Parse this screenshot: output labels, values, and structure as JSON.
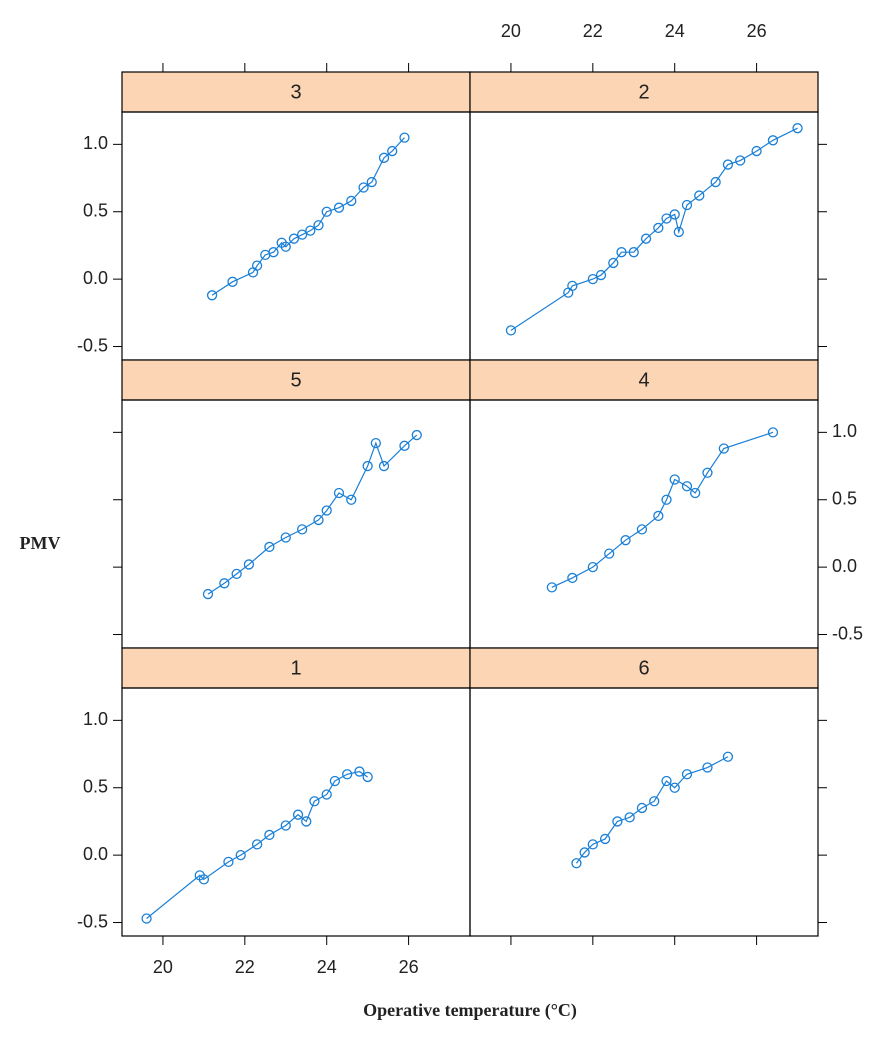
{
  "chart_data": {
    "type": "line",
    "xlabel": "Operative temperature (°C)",
    "ylabel": "PMV",
    "xlim": [
      19.0,
      27.5
    ],
    "xticks": [
      20,
      22,
      24,
      26
    ],
    "ylim": [
      -0.6,
      1.24
    ],
    "yticks": [
      -0.5,
      {
        "value": 0,
        "label": "0.0"
      },
      0.5,
      {
        "value": 1,
        "label": "1.0"
      }
    ],
    "color": "#1a7fd6",
    "strip_color": "#fcd5b4",
    "panels": [
      {
        "title": "3",
        "x": [
          21.2,
          21.7,
          22.2,
          22.3,
          22.5,
          22.7,
          22.9,
          23.0,
          23.2,
          23.4,
          23.6,
          23.8,
          24.0,
          24.3,
          24.6,
          24.9,
          25.1,
          25.4,
          25.6,
          25.9
        ],
        "values": [
          -0.12,
          -0.02,
          0.05,
          0.1,
          0.18,
          0.2,
          0.27,
          0.24,
          0.3,
          0.33,
          0.36,
          0.4,
          0.5,
          0.53,
          0.58,
          0.68,
          0.72,
          0.9,
          0.95,
          1.05
        ]
      },
      {
        "title": "2",
        "x": [
          20.0,
          21.4,
          21.5,
          22.0,
          22.2,
          22.5,
          22.7,
          23.0,
          23.3,
          23.6,
          23.8,
          24.0,
          24.1,
          24.3,
          24.6,
          25.0,
          25.3,
          25.6,
          26.0,
          26.4,
          27.0
        ],
        "values": [
          -0.38,
          -0.1,
          -0.05,
          0.0,
          0.03,
          0.12,
          0.2,
          0.2,
          0.3,
          0.38,
          0.45,
          0.48,
          0.35,
          0.55,
          0.62,
          0.72,
          0.85,
          0.88,
          0.95,
          1.03,
          1.12
        ]
      },
      {
        "title": "5",
        "x": [
          21.1,
          21.5,
          21.8,
          22.1,
          22.6,
          23.0,
          23.4,
          23.8,
          24.0,
          24.3,
          24.6,
          25.0,
          25.2,
          25.4,
          25.9,
          26.2
        ],
        "values": [
          -0.2,
          -0.12,
          -0.05,
          0.02,
          0.15,
          0.22,
          0.28,
          0.35,
          0.42,
          0.55,
          0.5,
          0.75,
          0.92,
          0.75,
          0.9,
          0.98
        ]
      },
      {
        "title": "4",
        "x": [
          21.0,
          21.5,
          22.0,
          22.4,
          22.8,
          23.2,
          23.6,
          23.8,
          24.0,
          24.3,
          24.5,
          24.8,
          25.2,
          26.4
        ],
        "values": [
          -0.15,
          -0.08,
          0.0,
          0.1,
          0.2,
          0.28,
          0.38,
          0.5,
          0.65,
          0.6,
          0.55,
          0.7,
          0.88,
          1.0
        ]
      },
      {
        "title": "1",
        "x": [
          19.6,
          20.9,
          21.0,
          21.6,
          21.9,
          22.3,
          22.6,
          23.0,
          23.3,
          23.5,
          23.7,
          24.0,
          24.2,
          24.5,
          24.8,
          25.0
        ],
        "values": [
          -0.47,
          -0.15,
          -0.18,
          -0.05,
          0.0,
          0.08,
          0.15,
          0.22,
          0.3,
          0.25,
          0.4,
          0.45,
          0.55,
          0.6,
          0.62,
          0.58
        ]
      },
      {
        "title": "6",
        "x": [
          21.6,
          21.8,
          22.0,
          22.3,
          22.6,
          22.9,
          23.2,
          23.5,
          23.8,
          24.0,
          24.3,
          24.8,
          25.3
        ],
        "values": [
          -0.06,
          0.02,
          0.08,
          0.12,
          0.25,
          0.28,
          0.35,
          0.4,
          0.55,
          0.5,
          0.6,
          0.65,
          0.73
        ]
      }
    ]
  }
}
